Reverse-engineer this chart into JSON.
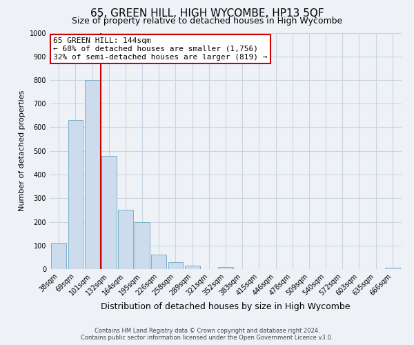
{
  "title": "65, GREEN HILL, HIGH WYCOMBE, HP13 5QF",
  "subtitle": "Size of property relative to detached houses in High Wycombe",
  "xlabel": "Distribution of detached houses by size in High Wycombe",
  "ylabel": "Number of detached properties",
  "bar_labels": [
    "38sqm",
    "69sqm",
    "101sqm",
    "132sqm",
    "164sqm",
    "195sqm",
    "226sqm",
    "258sqm",
    "289sqm",
    "321sqm",
    "352sqm",
    "383sqm",
    "415sqm",
    "446sqm",
    "478sqm",
    "509sqm",
    "540sqm",
    "572sqm",
    "603sqm",
    "635sqm",
    "666sqm"
  ],
  "bar_heights": [
    110,
    630,
    800,
    480,
    250,
    200,
    60,
    28,
    15,
    0,
    10,
    0,
    0,
    0,
    0,
    0,
    0,
    0,
    0,
    0,
    5
  ],
  "bar_color": "#ccdcec",
  "bar_edge_color": "#7aafc8",
  "vline_x_index": 2.5,
  "vline_color": "#cc0000",
  "ylim": [
    0,
    1000
  ],
  "yticks": [
    0,
    100,
    200,
    300,
    400,
    500,
    600,
    700,
    800,
    900,
    1000
  ],
  "annotation_title": "65 GREEN HILL: 144sqm",
  "annotation_line1": "← 68% of detached houses are smaller (1,756)",
  "annotation_line2": "32% of semi-detached houses are larger (819) →",
  "annotation_box_facecolor": "#ffffff",
  "annotation_box_edgecolor": "#cc0000",
  "footer1": "Contains HM Land Registry data © Crown copyright and database right 2024.",
  "footer2": "Contains public sector information licensed under the Open Government Licence v3.0.",
  "bg_color": "#eef2f6",
  "plot_bg_color": "#eef2f6",
  "grid_color": "#c8d4e0",
  "title_fontsize": 11,
  "subtitle_fontsize": 9,
  "xlabel_fontsize": 9,
  "ylabel_fontsize": 8,
  "tick_fontsize": 7,
  "annotation_fontsize": 8,
  "footer_fontsize": 6
}
